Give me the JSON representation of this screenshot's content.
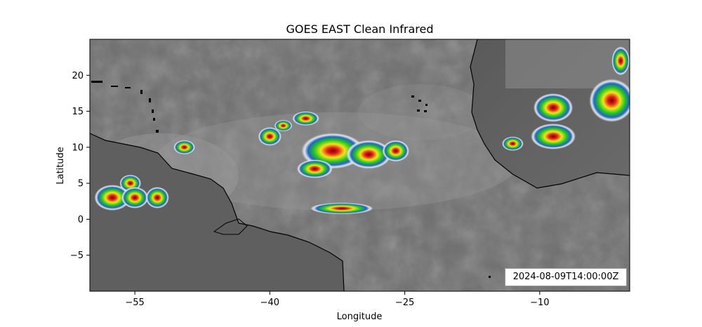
{
  "title": "GOES EAST Clean Infrared",
  "timestamp": "2024-08-09T14:00:00Z",
  "colors": {
    "background_gray": "#6e6e6e",
    "cold_cloud_green": "#1fc81f",
    "cold_cloud_yellow": "#f2e614",
    "cold_cloud_red": "#e61e1e",
    "coastline": "#000000"
  },
  "chart_data": {
    "type": "heatmap",
    "xlabel": "Longitude",
    "ylabel": "Latitude",
    "xlim": [
      -60,
      0
    ],
    "ylim": [
      -10,
      25
    ],
    "xticks": [
      -55,
      -40,
      -25,
      -10
    ],
    "yticks": [
      20,
      15,
      10,
      5,
      0,
      -5
    ],
    "xtick_labels": [
      "−55",
      "−40",
      "−25",
      "−10"
    ],
    "ytick_labels": [
      "20",
      "15",
      "10",
      "5",
      "0",
      "−5"
    ],
    "storms": [
      {
        "lon": -57.5,
        "lat": 3.0,
        "r_lon": 2.0,
        "r_lat": 1.8
      },
      {
        "lon": -55.5,
        "lat": 5.0,
        "r_lon": 1.2,
        "r_lat": 1.2
      },
      {
        "lon": -55.0,
        "lat": 3.0,
        "r_lon": 1.5,
        "r_lat": 1.5
      },
      {
        "lon": -52.5,
        "lat": 3.0,
        "r_lon": 1.3,
        "r_lat": 1.5
      },
      {
        "lon": -49.5,
        "lat": 10.0,
        "r_lon": 1.2,
        "r_lat": 1.0
      },
      {
        "lon": -40.0,
        "lat": 11.5,
        "r_lon": 1.3,
        "r_lat": 1.3
      },
      {
        "lon": -38.5,
        "lat": 13.0,
        "r_lon": 1.0,
        "r_lat": 0.8
      },
      {
        "lon": -36.0,
        "lat": 14.0,
        "r_lon": 1.5,
        "r_lat": 1.0
      },
      {
        "lon": -33.0,
        "lat": 9.5,
        "r_lon": 3.5,
        "r_lat": 2.5
      },
      {
        "lon": -29.0,
        "lat": 9.0,
        "r_lon": 2.5,
        "r_lat": 2.0
      },
      {
        "lon": -26.0,
        "lat": 9.5,
        "r_lon": 1.5,
        "r_lat": 1.5
      },
      {
        "lon": -35.0,
        "lat": 7.0,
        "r_lon": 2.0,
        "r_lat": 1.3
      },
      {
        "lon": -32.0,
        "lat": 1.5,
        "r_lon": 3.5,
        "r_lat": 0.8
      },
      {
        "lon": -8.5,
        "lat": 15.5,
        "r_lon": 2.2,
        "r_lat": 2.0
      },
      {
        "lon": -8.5,
        "lat": 11.5,
        "r_lon": 2.5,
        "r_lat": 1.8
      },
      {
        "lon": -13.0,
        "lat": 10.5,
        "r_lon": 1.2,
        "r_lat": 1.0
      },
      {
        "lon": -2.0,
        "lat": 16.5,
        "r_lon": 2.5,
        "r_lat": 3.0
      },
      {
        "lon": -1.0,
        "lat": 22.0,
        "r_lon": 1.0,
        "r_lat": 2.0
      }
    ]
  }
}
